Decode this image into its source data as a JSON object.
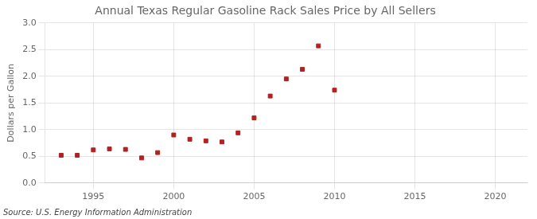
{
  "chart_data": {
    "type": "scatter",
    "title": "Annual Texas Regular Gasoline Rack Sales Price by All Sellers",
    "ylabel": "Dollars per Gallon",
    "annotations": [
      "Source: U.S. Energy Information Administration"
    ],
    "x": [
      1993,
      1994,
      1995,
      1996,
      1997,
      1998,
      1999,
      2000,
      2001,
      2002,
      2003,
      2004,
      2005,
      2006,
      2007,
      2008,
      2009,
      2010
    ],
    "values": [
      0.52,
      0.52,
      0.62,
      0.64,
      0.63,
      0.47,
      0.57,
      0.9,
      0.82,
      0.79,
      0.77,
      0.94,
      1.22,
      1.63,
      1.95,
      2.13,
      2.57,
      1.74
    ],
    "color": "#b22222",
    "marker": "square",
    "xlim": [
      1992,
      2022
    ],
    "xticks": [
      1995,
      2000,
      2005,
      2010,
      2015,
      2020
    ],
    "ylim": [
      0.0,
      3.0
    ],
    "yticks": [
      {
        "value": 0.0,
        "label": "0.0"
      },
      0.5,
      {
        "value": 1.0,
        "label": "1.0"
      },
      1.5,
      {
        "value": 2.0,
        "label": "2.0"
      },
      2.5,
      {
        "value": 3.0,
        "label": "3.0"
      }
    ],
    "grid": true
  }
}
